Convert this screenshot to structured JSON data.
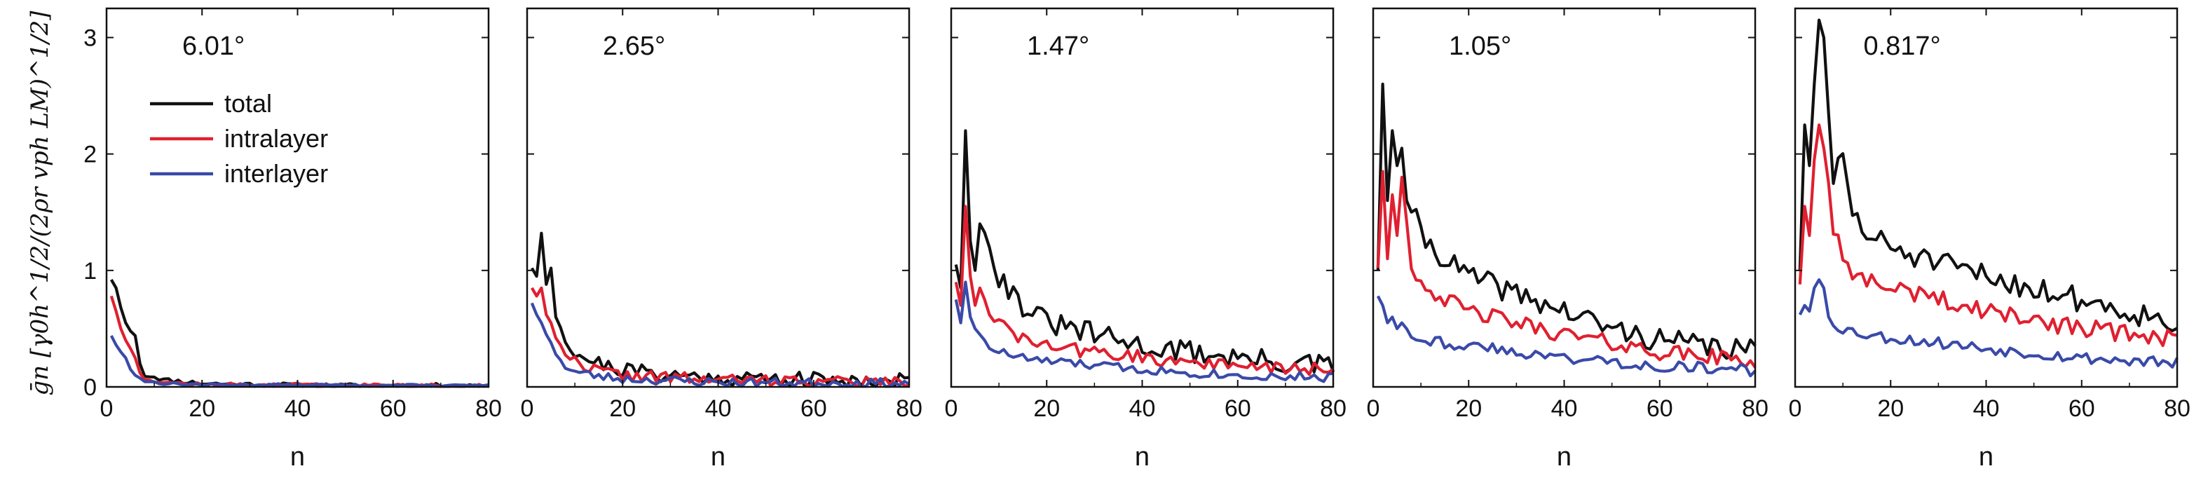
{
  "figure": {
    "ylabel": "ḡn [γ0h^1/2/(2ρr vph LM)^1/2]"
  },
  "colors": {
    "total": "#111111",
    "intralayer": "#e02030",
    "interlayer": "#3a4aa8"
  },
  "legend": [
    {
      "key": "total",
      "label": "total"
    },
    {
      "key": "intralayer",
      "label": "intralayer"
    },
    {
      "key": "interlayer",
      "label": "interlayer"
    }
  ],
  "chart_data": [
    {
      "type": "line",
      "title": "6.01°",
      "xlabel": "n",
      "ylabel": "ḡn",
      "xlim": [
        0,
        80
      ],
      "ylim": [
        0,
        3.25
      ],
      "xticks": [
        0,
        20,
        40,
        60,
        80
      ],
      "yticks": [
        0,
        1,
        2,
        3
      ],
      "legend_position": "upper-left",
      "series": [
        {
          "name": "total",
          "keypoints": [
            [
              1,
              0.92
            ],
            [
              2,
              0.85
            ],
            [
              3,
              0.68
            ],
            [
              4,
              0.55
            ],
            [
              5,
              0.48
            ],
            [
              6,
              0.44
            ],
            [
              7,
              0.2
            ],
            [
              8,
              0.1
            ],
            [
              10,
              0.09
            ],
            [
              12,
              0.06
            ],
            [
              15,
              0.05
            ],
            [
              20,
              0.03
            ],
            [
              30,
              0.02
            ],
            [
              50,
              0.01
            ],
            [
              80,
              0.01
            ]
          ],
          "noise": 0.02,
          "seed": 11
        },
        {
          "name": "intralayer",
          "keypoints": [
            [
              1,
              0.78
            ],
            [
              2,
              0.65
            ],
            [
              3,
              0.5
            ],
            [
              4,
              0.4
            ],
            [
              5,
              0.33
            ],
            [
              6,
              0.25
            ],
            [
              7,
              0.12
            ],
            [
              8,
              0.07
            ],
            [
              12,
              0.04
            ],
            [
              20,
              0.02
            ],
            [
              80,
              0.01
            ]
          ],
          "noise": 0.015,
          "seed": 12
        },
        {
          "name": "interlayer",
          "keypoints": [
            [
              1,
              0.44
            ],
            [
              2,
              0.36
            ],
            [
              3,
              0.3
            ],
            [
              4,
              0.25
            ],
            [
              5,
              0.15
            ],
            [
              6,
              0.1
            ],
            [
              8,
              0.05
            ],
            [
              12,
              0.03
            ],
            [
              20,
              0.02
            ],
            [
              80,
              0.01
            ]
          ],
          "noise": 0.01,
          "seed": 13
        }
      ]
    },
    {
      "type": "line",
      "title": "2.65°",
      "xlabel": "n",
      "ylabel": "",
      "xlim": [
        0,
        80
      ],
      "ylim": [
        0,
        3.25
      ],
      "xticks": [
        0,
        20,
        40,
        60,
        80
      ],
      "yticks": [],
      "series": [
        {
          "name": "total",
          "keypoints": [
            [
              1,
              1.02
            ],
            [
              2,
              0.95
            ],
            [
              3,
              1.32
            ],
            [
              4,
              0.88
            ],
            [
              5,
              1.02
            ],
            [
              6,
              0.6
            ],
            [
              8,
              0.42
            ],
            [
              10,
              0.3
            ],
            [
              15,
              0.2
            ],
            [
              20,
              0.15
            ],
            [
              30,
              0.1
            ],
            [
              40,
              0.08
            ],
            [
              60,
              0.06
            ],
            [
              80,
              0.05
            ]
          ],
          "noise": 0.07,
          "seed": 21
        },
        {
          "name": "intralayer",
          "keypoints": [
            [
              1,
              0.85
            ],
            [
              2,
              0.78
            ],
            [
              3,
              0.85
            ],
            [
              4,
              0.62
            ],
            [
              5,
              0.55
            ],
            [
              6,
              0.42
            ],
            [
              8,
              0.3
            ],
            [
              10,
              0.22
            ],
            [
              15,
              0.14
            ],
            [
              20,
              0.1
            ],
            [
              40,
              0.06
            ],
            [
              80,
              0.04
            ]
          ],
          "noise": 0.05,
          "seed": 22
        },
        {
          "name": "interlayer",
          "keypoints": [
            [
              1,
              0.72
            ],
            [
              2,
              0.62
            ],
            [
              3,
              0.55
            ],
            [
              4,
              0.45
            ],
            [
              5,
              0.38
            ],
            [
              6,
              0.28
            ],
            [
              8,
              0.18
            ],
            [
              10,
              0.13
            ],
            [
              15,
              0.09
            ],
            [
              20,
              0.07
            ],
            [
              40,
              0.04
            ],
            [
              80,
              0.03
            ]
          ],
          "noise": 0.04,
          "seed": 23
        }
      ]
    },
    {
      "type": "line",
      "title": "1.47°",
      "xlabel": "n",
      "ylabel": "",
      "xlim": [
        0,
        80
      ],
      "ylim": [
        0,
        3.25
      ],
      "xticks": [
        0,
        20,
        40,
        60,
        80
      ],
      "yticks": [],
      "series": [
        {
          "name": "total",
          "keypoints": [
            [
              1,
              1.05
            ],
            [
              2,
              0.85
            ],
            [
              3,
              2.2
            ],
            [
              4,
              1.25
            ],
            [
              5,
              1.0
            ],
            [
              6,
              1.4
            ],
            [
              8,
              1.25
            ],
            [
              10,
              0.95
            ],
            [
              15,
              0.7
            ],
            [
              20,
              0.55
            ],
            [
              30,
              0.45
            ],
            [
              40,
              0.35
            ],
            [
              50,
              0.3
            ],
            [
              60,
              0.25
            ],
            [
              70,
              0.2
            ],
            [
              80,
              0.18
            ]
          ],
          "noise": 0.1,
          "seed": 31
        },
        {
          "name": "intralayer",
          "keypoints": [
            [
              1,
              0.9
            ],
            [
              2,
              0.7
            ],
            [
              3,
              1.55
            ],
            [
              4,
              0.95
            ],
            [
              5,
              0.7
            ],
            [
              6,
              0.85
            ],
            [
              8,
              0.65
            ],
            [
              10,
              0.55
            ],
            [
              15,
              0.4
            ],
            [
              20,
              0.35
            ],
            [
              30,
              0.3
            ],
            [
              40,
              0.25
            ],
            [
              60,
              0.18
            ],
            [
              80,
              0.14
            ]
          ],
          "noise": 0.06,
          "seed": 32
        },
        {
          "name": "interlayer",
          "keypoints": [
            [
              1,
              0.75
            ],
            [
              2,
              0.55
            ],
            [
              3,
              0.9
            ],
            [
              4,
              0.6
            ],
            [
              5,
              0.5
            ],
            [
              6,
              0.45
            ],
            [
              8,
              0.35
            ],
            [
              10,
              0.3
            ],
            [
              15,
              0.25
            ],
            [
              20,
              0.22
            ],
            [
              40,
              0.15
            ],
            [
              60,
              0.1
            ],
            [
              80,
              0.08
            ]
          ],
          "noise": 0.04,
          "seed": 33
        }
      ]
    },
    {
      "type": "line",
      "title": "1.05°",
      "xlabel": "n",
      "ylabel": "",
      "xlim": [
        0,
        80
      ],
      "ylim": [
        0,
        3.25
      ],
      "xticks": [
        0,
        20,
        40,
        60,
        80
      ],
      "yticks": [],
      "series": [
        {
          "name": "total",
          "keypoints": [
            [
              1,
              1.0
            ],
            [
              2,
              2.6
            ],
            [
              3,
              1.6
            ],
            [
              4,
              2.2
            ],
            [
              5,
              1.9
            ],
            [
              6,
              2.05
            ],
            [
              7,
              1.6
            ],
            [
              8,
              1.55
            ],
            [
              10,
              1.3
            ],
            [
              15,
              1.1
            ],
            [
              20,
              0.95
            ],
            [
              30,
              0.8
            ],
            [
              40,
              0.65
            ],
            [
              50,
              0.5
            ],
            [
              60,
              0.4
            ],
            [
              70,
              0.35
            ],
            [
              80,
              0.3
            ]
          ],
          "noise": 0.1,
          "seed": 41
        },
        {
          "name": "intralayer",
          "keypoints": [
            [
              1,
              1.02
            ],
            [
              2,
              1.85
            ],
            [
              3,
              1.1
            ],
            [
              4,
              1.65
            ],
            [
              5,
              1.3
            ],
            [
              6,
              1.8
            ],
            [
              8,
              1.05
            ],
            [
              10,
              0.9
            ],
            [
              15,
              0.75
            ],
            [
              20,
              0.65
            ],
            [
              30,
              0.55
            ],
            [
              40,
              0.45
            ],
            [
              60,
              0.3
            ],
            [
              80,
              0.22
            ]
          ],
          "noise": 0.07,
          "seed": 42
        },
        {
          "name": "interlayer",
          "keypoints": [
            [
              1,
              0.78
            ],
            [
              2,
              0.7
            ],
            [
              3,
              0.55
            ],
            [
              4,
              0.6
            ],
            [
              5,
              0.5
            ],
            [
              6,
              0.55
            ],
            [
              8,
              0.45
            ],
            [
              10,
              0.42
            ],
            [
              15,
              0.38
            ],
            [
              20,
              0.35
            ],
            [
              30,
              0.3
            ],
            [
              40,
              0.25
            ],
            [
              60,
              0.18
            ],
            [
              80,
              0.14
            ]
          ],
          "noise": 0.05,
          "seed": 43
        }
      ]
    },
    {
      "type": "line",
      "title": "0.817°",
      "xlabel": "n",
      "ylabel": "",
      "xlim": [
        0,
        80
      ],
      "ylim": [
        0,
        3.25
      ],
      "xticks": [
        0,
        20,
        40,
        60,
        80
      ],
      "yticks": [],
      "series": [
        {
          "name": "total",
          "keypoints": [
            [
              1,
              1.0
            ],
            [
              2,
              2.25
            ],
            [
              3,
              1.9
            ],
            [
              4,
              2.6
            ],
            [
              5,
              3.15
            ],
            [
              6,
              3.0
            ],
            [
              7,
              2.35
            ],
            [
              8,
              1.8
            ],
            [
              10,
              1.95
            ],
            [
              12,
              1.5
            ],
            [
              15,
              1.3
            ],
            [
              20,
              1.2
            ],
            [
              30,
              1.05
            ],
            [
              40,
              0.95
            ],
            [
              50,
              0.85
            ],
            [
              60,
              0.75
            ],
            [
              70,
              0.65
            ],
            [
              80,
              0.55
            ]
          ],
          "noise": 0.11,
          "seed": 51
        },
        {
          "name": "intralayer",
          "keypoints": [
            [
              1,
              0.88
            ],
            [
              2,
              1.55
            ],
            [
              3,
              1.3
            ],
            [
              4,
              1.95
            ],
            [
              5,
              2.25
            ],
            [
              6,
              2.05
            ],
            [
              7,
              1.75
            ],
            [
              8,
              1.35
            ],
            [
              10,
              1.1
            ],
            [
              12,
              1.0
            ],
            [
              15,
              0.9
            ],
            [
              20,
              0.85
            ],
            [
              30,
              0.75
            ],
            [
              40,
              0.65
            ],
            [
              60,
              0.5
            ],
            [
              80,
              0.42
            ]
          ],
          "noise": 0.08,
          "seed": 52
        },
        {
          "name": "interlayer",
          "keypoints": [
            [
              1,
              0.62
            ],
            [
              2,
              0.7
            ],
            [
              3,
              0.65
            ],
            [
              4,
              0.85
            ],
            [
              5,
              0.92
            ],
            [
              6,
              0.85
            ],
            [
              7,
              0.6
            ],
            [
              8,
              0.55
            ],
            [
              10,
              0.5
            ],
            [
              15,
              0.45
            ],
            [
              20,
              0.42
            ],
            [
              30,
              0.38
            ],
            [
              40,
              0.33
            ],
            [
              60,
              0.25
            ],
            [
              80,
              0.2
            ]
          ],
          "noise": 0.05,
          "seed": 53
        }
      ]
    }
  ]
}
